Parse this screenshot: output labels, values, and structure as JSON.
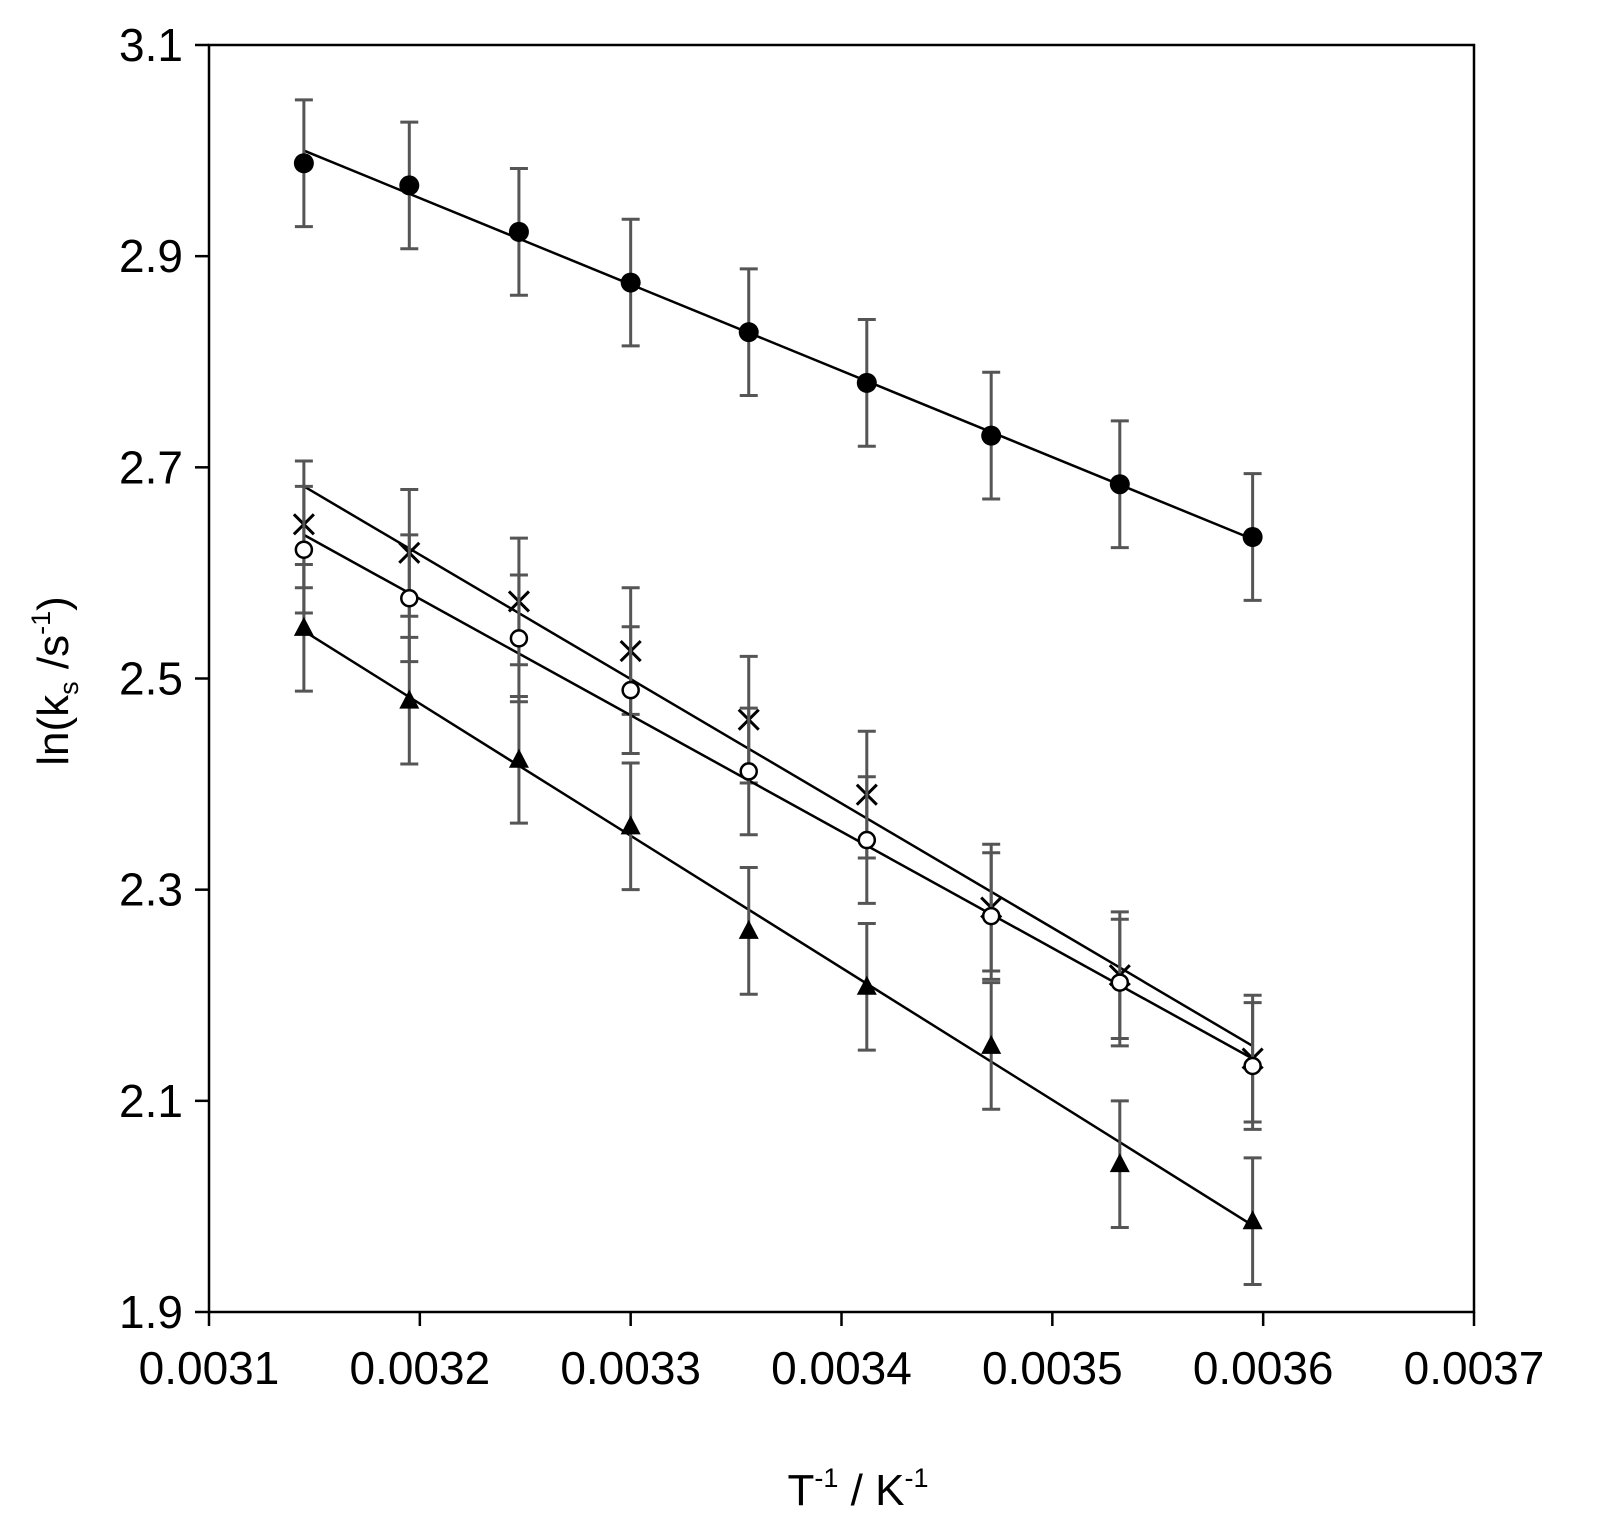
{
  "chart_data": {
    "type": "scatter",
    "xlabel": {
      "base": "T",
      "sup1": "-1",
      "mid": " / K",
      "sup2": "-1"
    },
    "ylabel": {
      "pre": "ln(k",
      "sub": "s",
      "mid": " /s",
      "sup": "-1",
      "post": ")"
    },
    "xlim": [
      0.0031,
      0.0037
    ],
    "ylim": [
      1.9,
      3.1
    ],
    "x_ticks": [
      0.0031,
      0.0032,
      0.0033,
      0.0034,
      0.0035,
      0.0036,
      0.0037
    ],
    "x_tick_labels": [
      "0.0031",
      "0.0032",
      "0.0033",
      "0.0034",
      "0.0035",
      "0.0036",
      "0.0037"
    ],
    "y_ticks": [
      1.9,
      2.1,
      2.3,
      2.5,
      2.7,
      2.9,
      3.1
    ],
    "y_tick_labels": [
      "1.9",
      "2.1",
      "2.3",
      "2.5",
      "2.7",
      "2.9",
      "3.1"
    ],
    "grid": false,
    "legend": "none",
    "error_bar_color": "#555555",
    "mark_color": "#000000",
    "series": [
      {
        "marker": "filled-circle",
        "x": [
          0.003145,
          0.003195,
          0.003247,
          0.0033,
          0.003356,
          0.003412,
          0.003471,
          0.003532,
          0.003595
        ],
        "y": [
          2.988,
          2.967,
          2.923,
          2.875,
          2.828,
          2.78,
          2.73,
          2.684,
          2.634
        ],
        "yerr": 0.06,
        "fit": {
          "x": [
            0.003145,
            0.003595
          ],
          "y": [
            3.0,
            2.632
          ]
        }
      },
      {
        "marker": "cross",
        "x": [
          0.003145,
          0.003195,
          0.003247,
          0.0033,
          0.003356,
          0.003412,
          0.003471,
          0.003532,
          0.003595
        ],
        "y": [
          2.646,
          2.619,
          2.573,
          2.526,
          2.461,
          2.39,
          2.283,
          2.219,
          2.14
        ],
        "yerr": 0.06,
        "fit": {
          "x": [
            0.003145,
            0.003595
          ],
          "y": [
            2.682,
            2.152
          ]
        }
      },
      {
        "marker": "open-circle",
        "x": [
          0.003145,
          0.003195,
          0.003247,
          0.0033,
          0.003356,
          0.003412,
          0.003471,
          0.003532,
          0.003595
        ],
        "y": [
          2.622,
          2.576,
          2.538,
          2.489,
          2.412,
          2.347,
          2.275,
          2.212,
          2.133
        ],
        "yerr": 0.06,
        "fit": {
          "x": [
            0.003145,
            0.003595
          ],
          "y": [
            2.636,
            2.14
          ]
        }
      },
      {
        "marker": "filled-triangle",
        "x": [
          0.003145,
          0.003195,
          0.003247,
          0.0033,
          0.003356,
          0.003412,
          0.003471,
          0.003532,
          0.003595
        ],
        "y": [
          2.548,
          2.479,
          2.423,
          2.36,
          2.261,
          2.208,
          2.152,
          2.04,
          1.986
        ],
        "yerr": 0.06,
        "fit": {
          "x": [
            0.003145,
            0.003595
          ],
          "y": [
            2.545,
            1.982
          ]
        }
      }
    ]
  }
}
